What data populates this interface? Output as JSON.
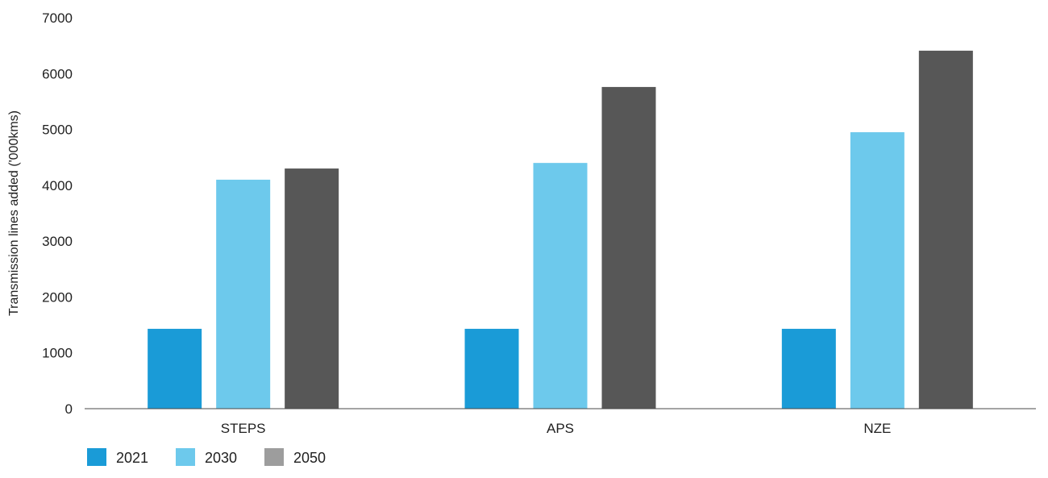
{
  "chart_data": {
    "type": "bar",
    "title": "",
    "xlabel": "",
    "ylabel": "Transmission lines added ('000kms)",
    "categories": [
      "STEPS",
      "APS",
      "NZE"
    ],
    "series": [
      {
        "name": "2021",
        "color": "#1a9bd7",
        "values": [
          1430,
          1430,
          1430
        ]
      },
      {
        "name": "2030",
        "color": "#6dc9ec",
        "values": [
          4100,
          4400,
          4950
        ]
      },
      {
        "name": "2050",
        "color": "#575757",
        "values": [
          4300,
          5760,
          6410
        ]
      }
    ],
    "legend_swatch_colors": [
      "#1a9bd7",
      "#6dc9ec",
      "#9d9d9d"
    ],
    "ylim": [
      0,
      7000
    ],
    "yticks": [
      "0",
      "1000",
      "2000",
      "3000",
      "4000",
      "5000",
      "6000",
      "7000"
    ],
    "grid": false,
    "legend_position": "bottom-left"
  }
}
